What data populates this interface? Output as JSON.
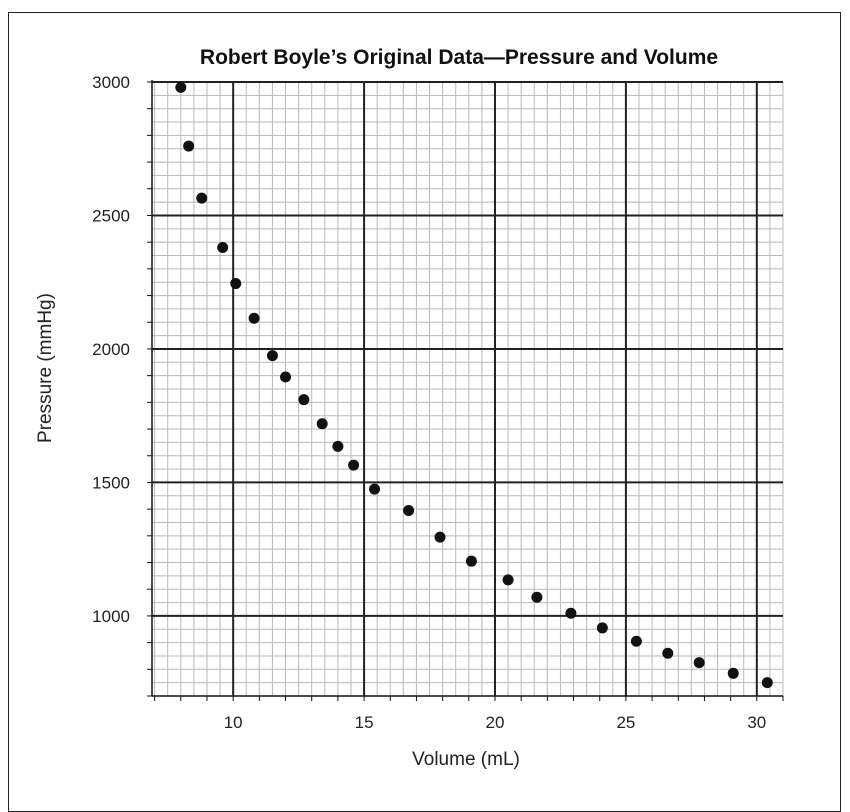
{
  "chart_data": {
    "type": "scatter",
    "title": "Robert Boyle’s Original Data—Pressure and Volume",
    "xlabel": "Volume (mL)",
    "ylabel": "Pressure (mmHg)",
    "xlim": [
      6.9,
      31.0
    ],
    "ylim": [
      700,
      3000
    ],
    "xticks": [
      10,
      15,
      20,
      25,
      30
    ],
    "yticks": [
      1000,
      1500,
      2000,
      2500,
      3000
    ],
    "xtick_labels": [
      "10",
      "15",
      "20",
      "25",
      "30"
    ],
    "ytick_labels": [
      "1000",
      "1500",
      "2000",
      "2500",
      "3000"
    ],
    "grid": true,
    "legend": "none",
    "colors": {
      "points": "#111111",
      "minor_grid": "#b8b8b8",
      "major_grid": "#222222"
    },
    "x": [
      8.0,
      8.3,
      8.8,
      9.6,
      10.1,
      10.8,
      11.5,
      12.0,
      12.7,
      13.4,
      14.0,
      14.6,
      15.4,
      16.7,
      17.9,
      19.1,
      20.5,
      21.6,
      22.9,
      24.1,
      25.4,
      26.6,
      27.8,
      29.1,
      30.4
    ],
    "y": [
      2980,
      2760,
      2565,
      2380,
      2245,
      2115,
      1975,
      1895,
      1810,
      1720,
      1635,
      1565,
      1475,
      1395,
      1295,
      1205,
      1135,
      1070,
      1010,
      955,
      905,
      860,
      825,
      785,
      750
    ]
  }
}
